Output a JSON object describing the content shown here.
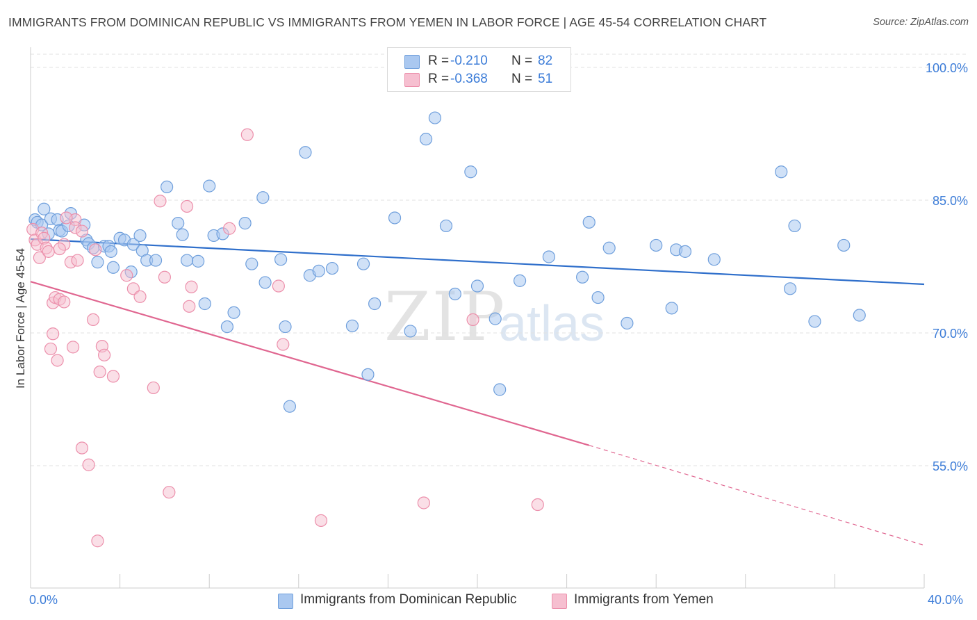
{
  "header": {
    "title": "IMMIGRANTS FROM DOMINICAN REPUBLIC VS IMMIGRANTS FROM YEMEN IN LABOR FORCE | AGE 45-54 CORRELATION CHART",
    "source": "Source: ZipAtlas.com"
  },
  "legend": {
    "series1": {
      "r_label": "R =",
      "r_value": "-0.210",
      "n_label": "N =",
      "n_value": "82"
    },
    "series2": {
      "r_label": "R =",
      "r_value": "-0.368",
      "n_label": "N =",
      "n_value": "51"
    }
  },
  "bottom_legend": {
    "series1_label": "Immigrants from Dominican Republic",
    "series2_label": "Immigrants from Yemen"
  },
  "axis": {
    "y_title": "In Labor Force | Age 45-54",
    "x_min_label": "0.0%",
    "x_max_label": "40.0%"
  },
  "watermark": {
    "zip": "ZIP",
    "atlas": "atlas"
  },
  "colors": {
    "blue_fill": "#aac8f0",
    "blue_stroke": "#6f9fdc",
    "blue_line": "#2f6fcb",
    "pink_fill": "#f6bfd0",
    "pink_stroke": "#ec8fab",
    "pink_line": "#e06690",
    "tick_text": "#3d7dd8",
    "grid": "#e2e2e2"
  },
  "chart_data": {
    "type": "scatter",
    "title": "IMMIGRANTS FROM DOMINICAN REPUBLIC VS IMMIGRANTS FROM YEMEN IN LABOR FORCE | AGE 45-54 CORRELATION CHART",
    "xlabel": "",
    "ylabel": "In Labor Force | Age 45-54",
    "xlim": [
      0,
      40
    ],
    "ylim": [
      40,
      102
    ],
    "y_ticks": [
      {
        "value": 100,
        "label": "100.0%"
      },
      {
        "value": 85,
        "label": "85.0%"
      },
      {
        "value": 70,
        "label": "70.0%"
      },
      {
        "value": 55,
        "label": "55.0%"
      }
    ],
    "x_tick_values": [
      0,
      4,
      8,
      12,
      16,
      20,
      24,
      28,
      32,
      36,
      40
    ],
    "series": [
      {
        "name": "Immigrants from Dominican Republic",
        "r": -0.21,
        "n": 82,
        "trend": {
          "x0": 0,
          "y0": 80.6,
          "x1": 40,
          "y1": 75.5
        },
        "points": [
          [
            0.2,
            82.8
          ],
          [
            0.3,
            82.5
          ],
          [
            0.5,
            82.2
          ],
          [
            0.6,
            84.0
          ],
          [
            0.9,
            82.9
          ],
          [
            0.8,
            81.2
          ],
          [
            1.2,
            82.8
          ],
          [
            1.3,
            81.6
          ],
          [
            1.4,
            81.5
          ],
          [
            1.8,
            83.5
          ],
          [
            1.7,
            82.1
          ],
          [
            2.4,
            82.2
          ],
          [
            2.5,
            80.5
          ],
          [
            2.6,
            80.1
          ],
          [
            2.8,
            79.6
          ],
          [
            3.0,
            78.0
          ],
          [
            3.3,
            79.8
          ],
          [
            3.5,
            79.8
          ],
          [
            3.6,
            79.2
          ],
          [
            3.7,
            77.4
          ],
          [
            4.0,
            80.7
          ],
          [
            4.2,
            80.5
          ],
          [
            4.5,
            76.9
          ],
          [
            4.6,
            80.0
          ],
          [
            4.9,
            81.0
          ],
          [
            5.0,
            79.3
          ],
          [
            5.2,
            78.2
          ],
          [
            5.6,
            78.2
          ],
          [
            6.1,
            86.5
          ],
          [
            6.6,
            82.4
          ],
          [
            6.8,
            81.1
          ],
          [
            7.0,
            78.2
          ],
          [
            7.5,
            78.1
          ],
          [
            7.8,
            73.3
          ],
          [
            8.0,
            86.6
          ],
          [
            8.2,
            81.0
          ],
          [
            8.6,
            81.2
          ],
          [
            8.8,
            70.7
          ],
          [
            9.1,
            72.3
          ],
          [
            9.6,
            82.4
          ],
          [
            9.9,
            77.8
          ],
          [
            10.4,
            85.3
          ],
          [
            10.5,
            75.7
          ],
          [
            11.2,
            78.3
          ],
          [
            11.4,
            70.7
          ],
          [
            11.6,
            61.7
          ],
          [
            12.3,
            90.4
          ],
          [
            12.5,
            76.5
          ],
          [
            12.9,
            77.0
          ],
          [
            13.5,
            77.3
          ],
          [
            14.4,
            70.8
          ],
          [
            14.9,
            77.8
          ],
          [
            15.1,
            65.3
          ],
          [
            15.4,
            73.3
          ],
          [
            16.3,
            83.0
          ],
          [
            17.0,
            70.2
          ],
          [
            17.7,
            91.9
          ],
          [
            18.1,
            94.3
          ],
          [
            18.6,
            82.1
          ],
          [
            19.0,
            74.4
          ],
          [
            19.7,
            88.2
          ],
          [
            20.0,
            75.3
          ],
          [
            20.8,
            71.6
          ],
          [
            21.0,
            63.6
          ],
          [
            21.9,
            75.9
          ],
          [
            23.2,
            78.6
          ],
          [
            24.7,
            76.3
          ],
          [
            25.0,
            82.5
          ],
          [
            25.4,
            74.0
          ],
          [
            25.9,
            79.6
          ],
          [
            26.7,
            71.1
          ],
          [
            28.0,
            79.9
          ],
          [
            28.7,
            72.8
          ],
          [
            28.9,
            79.4
          ],
          [
            29.3,
            79.2
          ],
          [
            30.6,
            78.3
          ],
          [
            33.6,
            88.2
          ],
          [
            34.0,
            75.0
          ],
          [
            34.2,
            82.1
          ],
          [
            35.1,
            71.3
          ],
          [
            36.4,
            79.9
          ],
          [
            37.1,
            72.0
          ]
        ]
      },
      {
        "name": "Immigrants from Yemen",
        "r": -0.368,
        "n": 51,
        "trend": {
          "x0": 0,
          "y0": 75.8,
          "x1": 25.0,
          "y1": 57.3,
          "dashed_to_x": 40,
          "dashed_to_y": 46.0
        },
        "points": [
          [
            0.1,
            81.7
          ],
          [
            0.2,
            80.5
          ],
          [
            0.3,
            80.0
          ],
          [
            0.4,
            78.5
          ],
          [
            0.5,
            81.3
          ],
          [
            0.6,
            80.7
          ],
          [
            0.7,
            79.6
          ],
          [
            0.8,
            79.2
          ],
          [
            0.9,
            68.2
          ],
          [
            1.0,
            69.9
          ],
          [
            1.0,
            73.4
          ],
          [
            1.1,
            74.0
          ],
          [
            1.2,
            66.9
          ],
          [
            1.3,
            73.8
          ],
          [
            1.5,
            80.0
          ],
          [
            1.5,
            73.5
          ],
          [
            1.8,
            78.0
          ],
          [
            1.9,
            68.4
          ],
          [
            2.0,
            82.8
          ],
          [
            2.0,
            81.9
          ],
          [
            2.1,
            78.2
          ],
          [
            2.3,
            57.0
          ],
          [
            2.6,
            55.1
          ],
          [
            2.8,
            71.5
          ],
          [
            2.9,
            79.4
          ],
          [
            3.0,
            46.5
          ],
          [
            3.1,
            65.6
          ],
          [
            3.2,
            68.5
          ],
          [
            3.3,
            67.5
          ],
          [
            3.7,
            65.1
          ],
          [
            4.3,
            76.5
          ],
          [
            4.6,
            75.0
          ],
          [
            4.9,
            74.1
          ],
          [
            5.5,
            63.8
          ],
          [
            5.8,
            84.9
          ],
          [
            6.0,
            76.3
          ],
          [
            6.2,
            52.0
          ],
          [
            7.0,
            84.3
          ],
          [
            7.2,
            75.2
          ],
          [
            7.1,
            73.0
          ],
          [
            8.9,
            81.8
          ],
          [
            9.7,
            92.4
          ],
          [
            11.1,
            75.3
          ],
          [
            11.3,
            68.7
          ],
          [
            13.0,
            48.8
          ],
          [
            17.6,
            50.8
          ],
          [
            19.8,
            71.5
          ],
          [
            22.7,
            50.6
          ],
          [
            1.6,
            83.0
          ],
          [
            1.3,
            79.5
          ],
          [
            2.3,
            81.5
          ]
        ]
      }
    ]
  }
}
